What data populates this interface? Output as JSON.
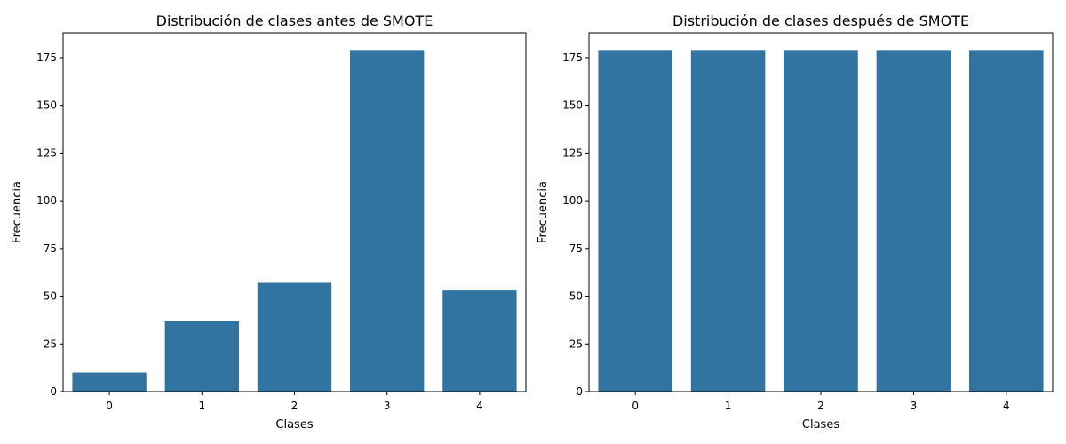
{
  "chart_data": [
    {
      "type": "bar",
      "title": "Distribución de clases antes de SMOTE",
      "xlabel": "Clases",
      "ylabel": "Frecuencia",
      "categories": [
        "0",
        "1",
        "2",
        "3",
        "4"
      ],
      "values": [
        10,
        37,
        57,
        179,
        53
      ],
      "ylim": [
        0,
        188
      ],
      "yticks": [
        0,
        25,
        50,
        75,
        100,
        125,
        150,
        175
      ],
      "color": "#3274a1",
      "grid": false
    },
    {
      "type": "bar",
      "title": "Distribución de clases después de SMOTE",
      "xlabel": "Clases",
      "ylabel": "Frecuencia",
      "categories": [
        "0",
        "1",
        "2",
        "3",
        "4"
      ],
      "values": [
        179,
        179,
        179,
        179,
        179
      ],
      "ylim": [
        0,
        188
      ],
      "yticks": [
        0,
        25,
        50,
        75,
        100,
        125,
        150,
        175
      ],
      "color": "#3274a1",
      "grid": false
    }
  ]
}
